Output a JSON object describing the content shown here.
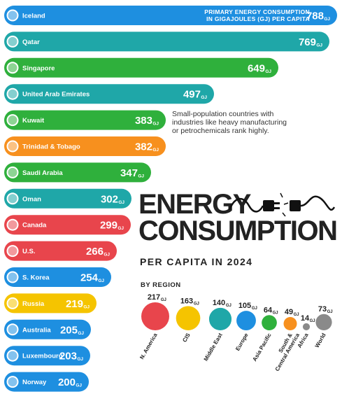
{
  "title_line1": "ENERGY",
  "title_line2": "CONSUMPTION",
  "subtitle": "PER CAPITA IN 2024",
  "primary_label": "PRIMARY ENERGY CONSUMPTION\nIN GIGAJOULES (GJ) PER CAPITA",
  "annotation": "Small-population countries with\nindustries like heavy manufacturing\nor petrochemicals rank highly.",
  "by_region_label": "BY REGION",
  "unit": "GJ",
  "colors": {
    "blue": "#1e8fe0",
    "teal": "#1fa7a8",
    "green": "#2fb03c",
    "orange": "#f7901e",
    "yellow": "#f5c400",
    "red": "#e8454c",
    "gray": "#8a8a8a"
  },
  "chart_data": [
    {
      "type": "bar",
      "categories": [
        "Iceland",
        "Qatar",
        "Singapore",
        "United Arab Emirates",
        "Kuwait",
        "Trinidad & Tobago",
        "Saudi Arabia",
        "Oman",
        "Canada",
        "U.S.",
        "S. Korea",
        "Russia",
        "Australia",
        "Luxembourg",
        "Norway"
      ],
      "values": [
        788,
        769,
        649,
        497,
        383,
        382,
        347,
        302,
        299,
        266,
        254,
        219,
        205,
        203,
        200
      ],
      "bar_colors": [
        "blue",
        "teal",
        "green",
        "teal",
        "green",
        "orange",
        "green",
        "teal",
        "red",
        "red",
        "blue",
        "yellow",
        "blue",
        "blue",
        "blue"
      ],
      "xlabel": "",
      "ylabel": ""
    },
    {
      "type": "scatter",
      "categories": [
        "N. America",
        "CIS",
        "Middle East",
        "Europe",
        "Asia Pacific",
        "South &\nCentral America",
        "Africa",
        "World"
      ],
      "values": [
        217,
        163,
        140,
        105,
        64,
        49,
        14,
        73
      ],
      "bubble_colors": [
        "red",
        "yellow",
        "teal",
        "blue",
        "green",
        "orange",
        "gray",
        "gray"
      ]
    }
  ]
}
